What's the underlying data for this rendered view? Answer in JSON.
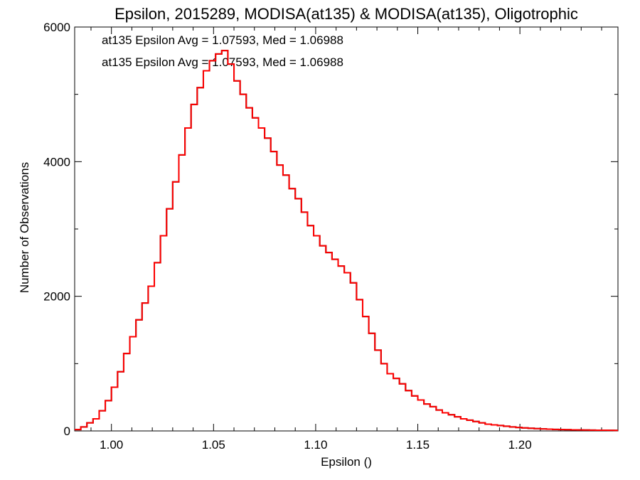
{
  "chart_data": {
    "type": "line",
    "title": "Epsilon, 2015289, MODISA(at135) & MODISA(at135), Oligotrophic",
    "xlabel": "Epsilon ()",
    "ylabel": "Number of Observations",
    "xlim": [
      0.982,
      1.248
    ],
    "ylim": [
      0,
      6000
    ],
    "xticks": [
      "1.00",
      "1.05",
      "1.10",
      "1.15",
      "1.20"
    ],
    "yticks": [
      "0",
      "2000",
      "4000",
      "6000"
    ],
    "grid": false,
    "annotations": [
      {
        "text": "at135 Epsilon Avg = 1.07593, Med = 1.06988",
        "color": "#000000"
      },
      {
        "text": "at135 Epsilon Avg = 1.07593, Med = 1.06988",
        "color": "#ff0000"
      }
    ],
    "series": [
      {
        "color": "#000000",
        "x": [
          0.982,
          0.985,
          0.988,
          0.991,
          0.994,
          0.997,
          1.0,
          1.003,
          1.006,
          1.009,
          1.012,
          1.015,
          1.018,
          1.021,
          1.024,
          1.027,
          1.03,
          1.033,
          1.036,
          1.039,
          1.042,
          1.045,
          1.048,
          1.051,
          1.054,
          1.057,
          1.06,
          1.063,
          1.066,
          1.069,
          1.072,
          1.075,
          1.078,
          1.081,
          1.084,
          1.087,
          1.09,
          1.093,
          1.096,
          1.099,
          1.102,
          1.105,
          1.108,
          1.111,
          1.114,
          1.117,
          1.12,
          1.123,
          1.126,
          1.129,
          1.132,
          1.135,
          1.138,
          1.141,
          1.144,
          1.147,
          1.15,
          1.153,
          1.156,
          1.159,
          1.162,
          1.165,
          1.168,
          1.171,
          1.174,
          1.177,
          1.18,
          1.183,
          1.186,
          1.189,
          1.192,
          1.195,
          1.198,
          1.201,
          1.204,
          1.207,
          1.21,
          1.213,
          1.216,
          1.219,
          1.222,
          1.225,
          1.228,
          1.231,
          1.234,
          1.237,
          1.24,
          1.243,
          1.246
        ],
        "y": [
          20,
          60,
          120,
          180,
          300,
          450,
          650,
          880,
          1150,
          1400,
          1650,
          1900,
          2150,
          2500,
          2900,
          3300,
          3700,
          4100,
          4500,
          4850,
          5100,
          5350,
          5500,
          5600,
          5650,
          5450,
          5200,
          5000,
          4800,
          4650,
          4500,
          4350,
          4150,
          3950,
          3800,
          3600,
          3450,
          3250,
          3050,
          2900,
          2750,
          2650,
          2550,
          2450,
          2350,
          2200,
          1950,
          1700,
          1450,
          1200,
          1000,
          850,
          780,
          700,
          600,
          520,
          460,
          400,
          360,
          310,
          270,
          240,
          210,
          180,
          160,
          140,
          120,
          100,
          90,
          80,
          70,
          60,
          52,
          45,
          40,
          35,
          30,
          26,
          23,
          20,
          18,
          16,
          14,
          13,
          12,
          11,
          10,
          9,
          8
        ]
      },
      {
        "color": "#ff0000",
        "x": [
          0.982,
          0.985,
          0.988,
          0.991,
          0.994,
          0.997,
          1.0,
          1.003,
          1.006,
          1.009,
          1.012,
          1.015,
          1.018,
          1.021,
          1.024,
          1.027,
          1.03,
          1.033,
          1.036,
          1.039,
          1.042,
          1.045,
          1.048,
          1.051,
          1.054,
          1.057,
          1.06,
          1.063,
          1.066,
          1.069,
          1.072,
          1.075,
          1.078,
          1.081,
          1.084,
          1.087,
          1.09,
          1.093,
          1.096,
          1.099,
          1.102,
          1.105,
          1.108,
          1.111,
          1.114,
          1.117,
          1.12,
          1.123,
          1.126,
          1.129,
          1.132,
          1.135,
          1.138,
          1.141,
          1.144,
          1.147,
          1.15,
          1.153,
          1.156,
          1.159,
          1.162,
          1.165,
          1.168,
          1.171,
          1.174,
          1.177,
          1.18,
          1.183,
          1.186,
          1.189,
          1.192,
          1.195,
          1.198,
          1.201,
          1.204,
          1.207,
          1.21,
          1.213,
          1.216,
          1.219,
          1.222,
          1.225,
          1.228,
          1.231,
          1.234,
          1.237,
          1.24,
          1.243,
          1.246
        ],
        "y": [
          20,
          60,
          120,
          180,
          300,
          450,
          650,
          880,
          1150,
          1400,
          1650,
          1900,
          2150,
          2500,
          2900,
          3300,
          3700,
          4100,
          4500,
          4850,
          5100,
          5350,
          5500,
          5600,
          5650,
          5450,
          5200,
          5000,
          4800,
          4650,
          4500,
          4350,
          4150,
          3950,
          3800,
          3600,
          3450,
          3250,
          3050,
          2900,
          2750,
          2650,
          2550,
          2450,
          2350,
          2200,
          1950,
          1700,
          1450,
          1200,
          1000,
          850,
          780,
          700,
          600,
          520,
          460,
          400,
          360,
          310,
          270,
          240,
          210,
          180,
          160,
          140,
          120,
          100,
          90,
          80,
          70,
          60,
          52,
          45,
          40,
          35,
          30,
          26,
          23,
          20,
          18,
          16,
          14,
          13,
          12,
          11,
          10,
          9,
          8
        ]
      }
    ]
  }
}
